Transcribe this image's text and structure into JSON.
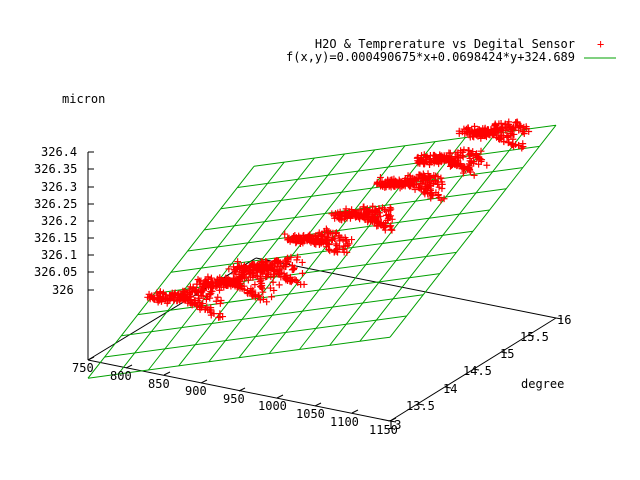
{
  "chart_data": {
    "type": "scatter",
    "subtype": "3d-surface-with-points",
    "title": "",
    "xlabel": "",
    "ylabel": "degree",
    "zlabel": "micron",
    "xlim": [
      750,
      1150
    ],
    "ylim": [
      13,
      16
    ],
    "zlim": [
      326,
      326.4
    ],
    "xticks": [
      "750",
      "800",
      "850",
      "900",
      "950",
      "1000",
      "1050",
      "1100",
      "1150"
    ],
    "yticks": [
      "13",
      "13.5",
      "14",
      "14.5",
      "15",
      "15.5",
      "16"
    ],
    "zticks": [
      "326",
      "326.05",
      "326.1",
      "326.15",
      "326.2",
      "326.25",
      "326.3",
      "326.35",
      "326.4"
    ],
    "legend_position": "top-right",
    "grid": true,
    "series": [
      {
        "name": "H2O & Temprerature vs Degital Sensor",
        "marker": "+",
        "color": "#ff0000"
      },
      {
        "name": "f(x,y)=0.000490675*x+0.0698424*y+324.689",
        "marker": "line",
        "color": "#00a000",
        "model": {
          "a": 0.000490675,
          "b": 0.0698424,
          "c": 324.689
        }
      }
    ],
    "points_preview": [
      {
        "x": 850,
        "y": 13.8,
        "z": 326.11
      },
      {
        "x": 880,
        "y": 14.0,
        "z": 326.14
      },
      {
        "x": 920,
        "y": 14.1,
        "z": 326.17
      },
      {
        "x": 970,
        "y": 14.5,
        "z": 326.23
      },
      {
        "x": 1020,
        "y": 14.9,
        "z": 326.29
      },
      {
        "x": 1060,
        "y": 15.2,
        "z": 326.33
      },
      {
        "x": 1100,
        "y": 15.6,
        "z": 326.38
      }
    ]
  }
}
